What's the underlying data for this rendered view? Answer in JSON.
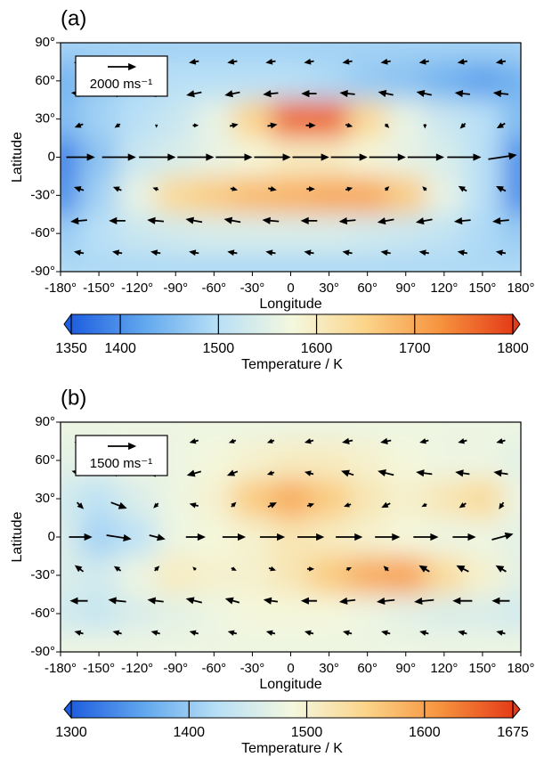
{
  "chart_data": [
    {
      "type": "heatmap-quiver",
      "panel_label": "(a)",
      "xlabel": "Longitude",
      "ylabel": "Latitude",
      "xlim": [
        -180,
        180
      ],
      "ylim": [
        -90,
        90
      ],
      "xticks": [
        {
          "value": -180,
          "label": "-180°"
        },
        {
          "value": -150,
          "label": "-150°"
        },
        {
          "value": -120,
          "label": "-120°"
        },
        {
          "value": -90,
          "label": "-90°"
        },
        {
          "value": -60,
          "label": "-60°"
        },
        {
          "value": -30,
          "label": "-30°"
        },
        0,
        {
          "value": 30,
          "label": "30°"
        },
        {
          "value": 60,
          "label": "60°"
        },
        {
          "value": 90,
          "label": "90°"
        },
        {
          "value": 120,
          "label": "120°"
        },
        {
          "value": 150,
          "label": "150°"
        },
        {
          "value": 180,
          "label": "180°"
        }
      ],
      "yticks": [
        {
          "value": 90,
          "label": "90°"
        },
        {
          "value": 60,
          "label": "60°"
        },
        {
          "value": 30,
          "label": "30°"
        },
        0,
        {
          "value": -30,
          "label": "-30°"
        },
        {
          "value": -60,
          "label": "-60°"
        },
        {
          "value": -90,
          "label": "-90°"
        }
      ],
      "colormap": [
        "#1f5ee0",
        "#62a8ee",
        "#b9e0f6",
        "#f4f8df",
        "#fbd48a",
        "#f7943f",
        "#e43c18"
      ],
      "colorbar": {
        "label": "Temperature / K",
        "clim": [
          1350,
          1800
        ],
        "ticks": [
          1350,
          1400,
          1500,
          1600,
          1700,
          1800
        ]
      },
      "temperature": {
        "lon": [
          -180,
          -150,
          -120,
          -90,
          -60,
          -30,
          0,
          30,
          60,
          90,
          120,
          150,
          180
        ],
        "lat": [
          90,
          60,
          30,
          0,
          -30,
          -60,
          -90
        ],
        "values": [
          [
            1480,
            1480,
            1480,
            1480,
            1480,
            1480,
            1480,
            1480,
            1480,
            1480,
            1480,
            1480,
            1480
          ],
          [
            1440,
            1470,
            1490,
            1500,
            1500,
            1500,
            1500,
            1490,
            1470,
            1460,
            1440,
            1420,
            1440
          ],
          [
            1450,
            1480,
            1500,
            1520,
            1560,
            1650,
            1760,
            1760,
            1640,
            1560,
            1520,
            1500,
            1450
          ],
          [
            1390,
            1460,
            1520,
            1540,
            1560,
            1580,
            1600,
            1600,
            1580,
            1560,
            1540,
            1500,
            1400
          ],
          [
            1400,
            1480,
            1560,
            1640,
            1660,
            1680,
            1690,
            1700,
            1700,
            1660,
            1560,
            1500,
            1400
          ],
          [
            1470,
            1500,
            1520,
            1530,
            1540,
            1540,
            1540,
            1540,
            1530,
            1520,
            1510,
            1490,
            1470
          ],
          [
            1490,
            1490,
            1490,
            1490,
            1490,
            1490,
            1490,
            1490,
            1490,
            1490,
            1490,
            1490,
            1490
          ]
        ]
      },
      "wind": {
        "lon": [
          -165,
          -135,
          -105,
          -75,
          -45,
          -15,
          15,
          45,
          75,
          105,
          135,
          165
        ],
        "lat": [
          75,
          50,
          25,
          0,
          -25,
          -50,
          -75
        ],
        "u": [
          [
            -600,
            -600,
            -600,
            -600,
            -600,
            -600,
            -600,
            -600,
            -600,
            -600,
            -600,
            -600
          ],
          [
            -1000,
            -1000,
            -1000,
            -1000,
            -1000,
            -1000,
            -1000,
            -1000,
            -1000,
            -1000,
            -1000,
            -1000
          ],
          [
            -500,
            -300,
            0,
            300,
            500,
            600,
            600,
            400,
            200,
            0,
            -300,
            -500
          ],
          [
            2000,
            2400,
            2600,
            2600,
            2600,
            2600,
            2600,
            2600,
            2600,
            2600,
            2400,
            2000
          ],
          [
            -600,
            -500,
            -300,
            0,
            400,
            500,
            500,
            400,
            200,
            -200,
            -500,
            -600
          ],
          [
            -1100,
            -1100,
            -1100,
            -1100,
            -1100,
            -1100,
            -1100,
            -1100,
            -1100,
            -1100,
            -1100,
            -1100
          ],
          [
            -600,
            -600,
            -600,
            -600,
            -600,
            -600,
            -600,
            -600,
            -600,
            -600,
            -600,
            -600
          ]
        ],
        "v": [
          [
            -100,
            -100,
            -100,
            -100,
            -100,
            -100,
            -100,
            -100,
            -100,
            -100,
            -100,
            -100
          ],
          [
            100,
            0,
            -100,
            -200,
            -200,
            -100,
            0,
            100,
            200,
            200,
            100,
            100
          ],
          [
            -200,
            -200,
            -100,
            0,
            100,
            100,
            0,
            -100,
            -200,
            -200,
            -300,
            -300
          ],
          [
            0,
            0,
            0,
            0,
            0,
            0,
            0,
            0,
            0,
            0,
            0,
            300
          ],
          [
            200,
            200,
            100,
            0,
            -100,
            -100,
            0,
            100,
            200,
            200,
            300,
            300
          ],
          [
            -100,
            0,
            100,
            200,
            200,
            100,
            0,
            -100,
            -200,
            -200,
            -100,
            -100
          ],
          [
            100,
            100,
            100,
            100,
            100,
            100,
            100,
            100,
            100,
            100,
            100,
            100
          ]
        ]
      },
      "ref_vector": {
        "value": 2000,
        "label": "2000 ms⁻¹"
      }
    },
    {
      "type": "heatmap-quiver",
      "panel_label": "(b)",
      "xlabel": "Longitude",
      "ylabel": "Latitude",
      "xlim": [
        -180,
        180
      ],
      "ylim": [
        -90,
        90
      ],
      "xticks": [
        {
          "value": -180,
          "label": "-180°"
        },
        {
          "value": -150,
          "label": "-150°"
        },
        {
          "value": -120,
          "label": "-120°"
        },
        {
          "value": -90,
          "label": "-90°"
        },
        {
          "value": -60,
          "label": "-60°"
        },
        {
          "value": -30,
          "label": "-30°"
        },
        0,
        {
          "value": 30,
          "label": "30°"
        },
        {
          "value": 60,
          "label": "60°"
        },
        {
          "value": 90,
          "label": "90°"
        },
        {
          "value": 120,
          "label": "120°"
        },
        {
          "value": 150,
          "label": "150°"
        },
        {
          "value": 180,
          "label": "180°"
        }
      ],
      "yticks": [
        {
          "value": 90,
          "label": "90°"
        },
        {
          "value": 60,
          "label": "60°"
        },
        {
          "value": 30,
          "label": "30°"
        },
        0,
        {
          "value": -30,
          "label": "-30°"
        },
        {
          "value": -60,
          "label": "-60°"
        },
        {
          "value": -90,
          "label": "-90°"
        }
      ],
      "colormap": [
        "#1f5ee0",
        "#62a8ee",
        "#b9e0f6",
        "#f4f8df",
        "#fbd48a",
        "#f7943f",
        "#e43c18"
      ],
      "colorbar": {
        "label": "Temperature / K",
        "clim": [
          1300,
          1675
        ],
        "ticks": [
          1300,
          1400,
          1500,
          1600,
          1675
        ]
      },
      "temperature": {
        "lon": [
          -180,
          -150,
          -120,
          -90,
          -60,
          -30,
          0,
          30,
          60,
          90,
          120,
          150,
          180
        ],
        "lat": [
          90,
          60,
          30,
          0,
          -30,
          -60,
          -90
        ],
        "values": [
          [
            1480,
            1480,
            1480,
            1480,
            1480,
            1480,
            1480,
            1480,
            1480,
            1480,
            1480,
            1480,
            1480
          ],
          [
            1470,
            1470,
            1480,
            1480,
            1490,
            1500,
            1510,
            1510,
            1500,
            1490,
            1480,
            1480,
            1470
          ],
          [
            1450,
            1430,
            1460,
            1480,
            1500,
            1560,
            1590,
            1560,
            1520,
            1500,
            1520,
            1540,
            1480
          ],
          [
            1460,
            1410,
            1430,
            1480,
            1490,
            1500,
            1520,
            1510,
            1500,
            1490,
            1480,
            1480,
            1470
          ],
          [
            1460,
            1450,
            1480,
            1510,
            1500,
            1500,
            1520,
            1560,
            1590,
            1600,
            1540,
            1500,
            1470
          ],
          [
            1450,
            1440,
            1460,
            1470,
            1480,
            1490,
            1490,
            1490,
            1480,
            1470,
            1460,
            1460,
            1450
          ],
          [
            1480,
            1480,
            1480,
            1480,
            1480,
            1480,
            1480,
            1480,
            1480,
            1480,
            1480,
            1480,
            1480
          ]
        ]
      },
      "wind": {
        "lon": [
          -165,
          -135,
          -105,
          -75,
          -45,
          -15,
          15,
          45,
          75,
          105,
          135,
          165
        ],
        "lat": [
          75,
          50,
          25,
          0,
          -25,
          -50,
          -75
        ],
        "u": [
          [
            -400,
            -500,
            -500,
            -400,
            -300,
            -300,
            -400,
            -500,
            -500,
            -400,
            -400,
            -400
          ],
          [
            -700,
            -800,
            -800,
            -700,
            -500,
            -300,
            -400,
            -600,
            -800,
            -800,
            -700,
            -700
          ],
          [
            300,
            800,
            -200,
            -400,
            200,
            400,
            300,
            -300,
            -400,
            -200,
            -300,
            -200
          ],
          [
            1200,
            1300,
            800,
            1000,
            1200,
            1300,
            1400,
            1400,
            1300,
            1300,
            1200,
            1100
          ],
          [
            -400,
            -300,
            200,
            -100,
            200,
            300,
            300,
            200,
            -200,
            -500,
            -600,
            -500
          ],
          [
            -900,
            -900,
            -800,
            -800,
            -700,
            -700,
            -800,
            -800,
            -900,
            -1000,
            -1000,
            -900
          ],
          [
            -400,
            -400,
            -400,
            -400,
            -400,
            -400,
            -400,
            -400,
            -400,
            -400,
            -400,
            -400
          ]
        ],
        "v": [
          [
            -100,
            -100,
            -100,
            -100,
            -100,
            -100,
            -100,
            -100,
            -100,
            -100,
            -100,
            -100
          ],
          [
            200,
            100,
            -100,
            -200,
            -200,
            -100,
            100,
            200,
            200,
            100,
            100,
            100
          ],
          [
            -300,
            -300,
            -200,
            100,
            200,
            200,
            100,
            -100,
            -200,
            -100,
            -200,
            -300
          ],
          [
            0,
            -200,
            -200,
            0,
            0,
            0,
            0,
            0,
            0,
            0,
            0,
            300
          ],
          [
            300,
            200,
            200,
            100,
            -100,
            -100,
            0,
            100,
            200,
            300,
            300,
            300
          ],
          [
            0,
            100,
            100,
            200,
            200,
            100,
            0,
            -100,
            -100,
            -100,
            0,
            0
          ],
          [
            100,
            100,
            100,
            100,
            100,
            100,
            100,
            100,
            100,
            100,
            100,
            100
          ]
        ]
      },
      "ref_vector": {
        "value": 1500,
        "label": "1500 ms⁻¹"
      }
    }
  ]
}
